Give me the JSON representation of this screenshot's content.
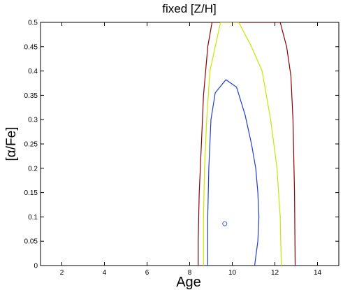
{
  "chart_data": {
    "type": "line",
    "title": "fixed [Z/H]",
    "xlabel": "Age",
    "ylabel": "[α/Fe]",
    "xlim": [
      1,
      15
    ],
    "ylim": [
      0,
      0.5
    ],
    "xticks": [
      2,
      4,
      6,
      8,
      10,
      12,
      14
    ],
    "yticks": [
      0,
      0.05,
      0.1,
      0.15,
      0.2,
      0.25,
      0.3,
      0.35,
      0.4,
      0.45,
      0.5
    ],
    "ytick_labels": [
      "0",
      "0.05",
      "0.1",
      "0.15",
      "0.2",
      "0.25",
      "0.3",
      "0.35",
      "0.4",
      "0.45",
      "0.5"
    ],
    "grid": false,
    "series": [
      {
        "color": "#8b0000",
        "style": "line",
        "x": [
          8.4,
          8.4,
          8.45,
          8.55,
          8.65,
          8.75,
          8.85,
          8.95,
          9.05,
          12.25,
          12.55,
          12.75,
          12.85,
          12.92,
          12.95
        ],
        "y": [
          0,
          0.05,
          0.15,
          0.25,
          0.35,
          0.4,
          0.45,
          0.475,
          0.5,
          0.5,
          0.45,
          0.39,
          0.3,
          0.15,
          0
        ]
      },
      {
        "color": "#c8e600",
        "style": "line",
        "x": [
          8.65,
          8.65,
          8.7,
          8.8,
          8.95,
          9.2,
          9.45,
          10.3,
          10.9,
          11.4,
          11.8,
          12.1,
          12.25,
          12.3
        ],
        "y": [
          0,
          0.1,
          0.2,
          0.3,
          0.4,
          0.45,
          0.5,
          0.5,
          0.45,
          0.4,
          0.3,
          0.2,
          0.1,
          0
        ]
      },
      {
        "color": "#1f3fd0",
        "style": "line",
        "x": [
          8.85,
          8.85,
          8.9,
          9.0,
          9.2,
          9.7,
          10.2,
          10.6,
          10.9,
          11.1,
          11.2,
          11.25,
          11.2,
          11.05
        ],
        "y": [
          0,
          0.1,
          0.2,
          0.3,
          0.355,
          0.382,
          0.367,
          0.31,
          0.25,
          0.2,
          0.15,
          0.1,
          0.05,
          0
        ]
      },
      {
        "color": "#3f5fff",
        "style": "marker",
        "x": [
          9.65
        ],
        "y": [
          0.086
        ]
      }
    ]
  }
}
